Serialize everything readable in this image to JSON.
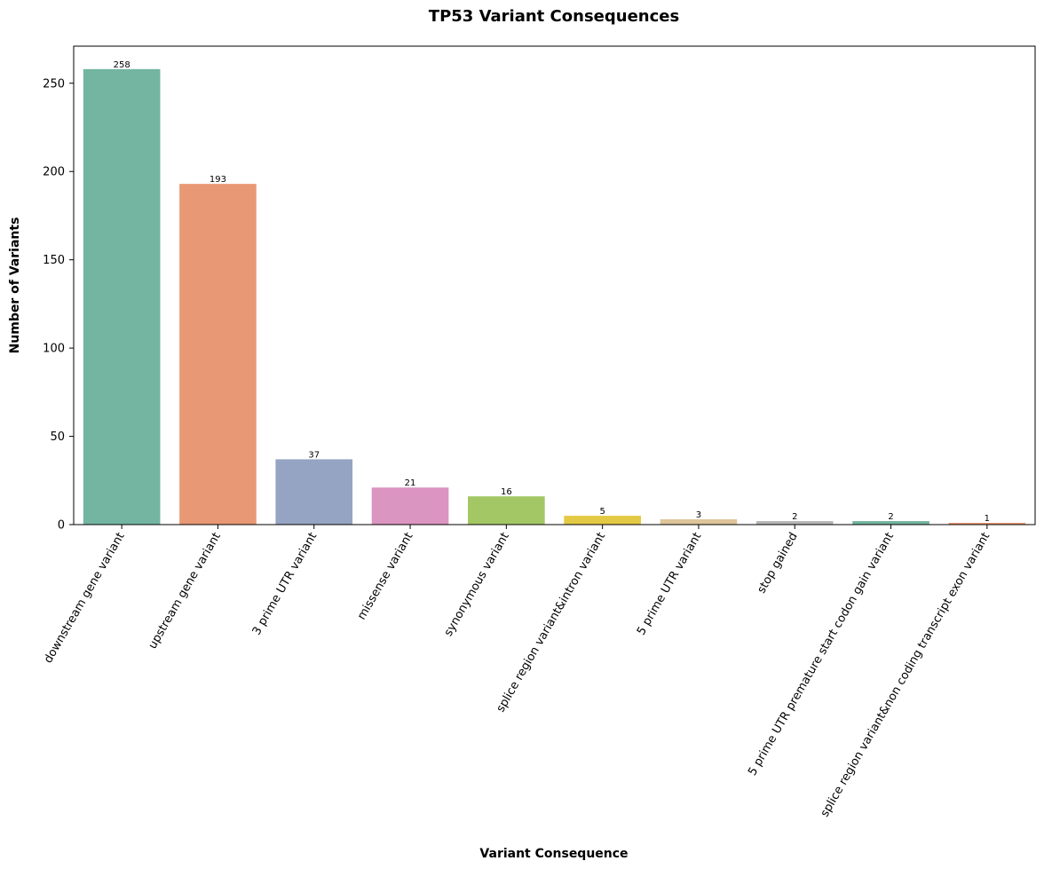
{
  "chart_data": {
    "type": "bar",
    "title": "TP53 Variant Consequences",
    "xlabel": "Variant Consequence",
    "ylabel": "Number of Variants",
    "categories": [
      "downstream gene variant",
      "upstream gene variant",
      "3 prime UTR variant",
      "missense variant",
      "synonymous variant",
      "splice region variant&intron variant",
      "5 prime UTR variant",
      "stop gained",
      "5 prime UTR premature start codon gain variant",
      "splice region variant&non coding transcript exon variant"
    ],
    "values": [
      258,
      193,
      37,
      21,
      16,
      5,
      3,
      2,
      2,
      1
    ],
    "data_labels": [
      "258",
      "193",
      "37",
      "21",
      "16",
      "5",
      "3",
      "2",
      "2",
      "1"
    ],
    "colors": [
      "#73b5a0",
      "#e99875",
      "#94a4c2",
      "#db95c1",
      "#a3c764",
      "#e4ca44",
      "#dec599",
      "#b6b6b6",
      "#73b5a0",
      "#e99875"
    ],
    "ylim": [
      0,
      271
    ],
    "yticks": [
      0,
      50,
      100,
      150,
      200,
      250
    ],
    "ytick_labels": [
      "0",
      "50",
      "100",
      "150",
      "200",
      "250"
    ],
    "grid": false,
    "legend": "none"
  }
}
